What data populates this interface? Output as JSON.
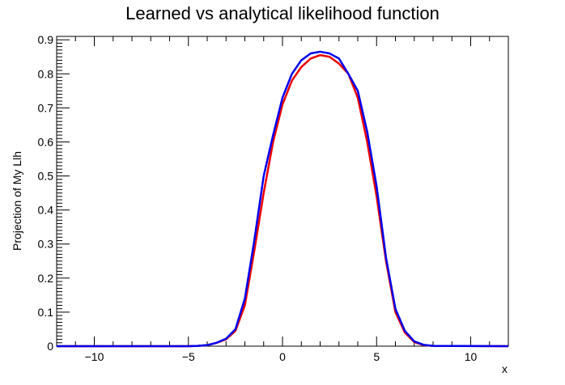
{
  "chart_data": {
    "type": "line",
    "title": "Learned vs analytical likelihood function",
    "xlabel": "x",
    "ylabel": "Projection of My Llh",
    "xlim": [
      -12,
      12
    ],
    "ylim": [
      0,
      0.91
    ],
    "x_ticks": [
      -10,
      -5,
      0,
      5,
      10
    ],
    "x_tick_labels": [
      "−10",
      "−5",
      "0",
      "5",
      "10"
    ],
    "y_ticks": [
      0,
      0.1,
      0.2,
      0.3,
      0.4,
      0.5,
      0.6,
      0.7,
      0.8,
      0.9
    ],
    "y_tick_labels": [
      "0",
      "0.1",
      "0.2",
      "0.3",
      "0.4",
      "0.5",
      "0.6",
      "0.7",
      "0.8",
      "0.9"
    ],
    "grid": false,
    "legend": "none",
    "series": [
      {
        "color": "#ee0000",
        "x": [
          -12,
          -5,
          -4.5,
          -4,
          -3.5,
          -3,
          -2.5,
          -2,
          -1.5,
          -1,
          -0.5,
          0,
          0.5,
          1,
          1.5,
          2,
          2.5,
          3,
          3.5,
          4,
          4.5,
          5,
          5.5,
          6,
          6.5,
          7,
          7.5,
          8,
          12
        ],
        "y": [
          0,
          0,
          0.001,
          0.003,
          0.01,
          0.02,
          0.045,
          0.12,
          0.28,
          0.45,
          0.6,
          0.71,
          0.78,
          0.82,
          0.845,
          0.855,
          0.85,
          0.83,
          0.8,
          0.73,
          0.6,
          0.44,
          0.25,
          0.1,
          0.04,
          0.012,
          0.003,
          0.001,
          0
        ]
      },
      {
        "color": "#0000ee",
        "x": [
          -12,
          -5,
          -4.5,
          -4,
          -3.5,
          -3,
          -2.5,
          -2,
          -1.5,
          -1,
          -0.5,
          0,
          0.5,
          1,
          1.5,
          2,
          2.5,
          3,
          3.5,
          4,
          4.5,
          5,
          5.5,
          6,
          6.5,
          7,
          7.5,
          8,
          12
        ],
        "y": [
          0,
          0,
          0.001,
          0.003,
          0.01,
          0.022,
          0.05,
          0.14,
          0.31,
          0.5,
          0.62,
          0.73,
          0.8,
          0.84,
          0.86,
          0.865,
          0.86,
          0.845,
          0.8,
          0.75,
          0.63,
          0.47,
          0.26,
          0.11,
          0.045,
          0.014,
          0.004,
          0.001,
          0
        ]
      }
    ]
  }
}
